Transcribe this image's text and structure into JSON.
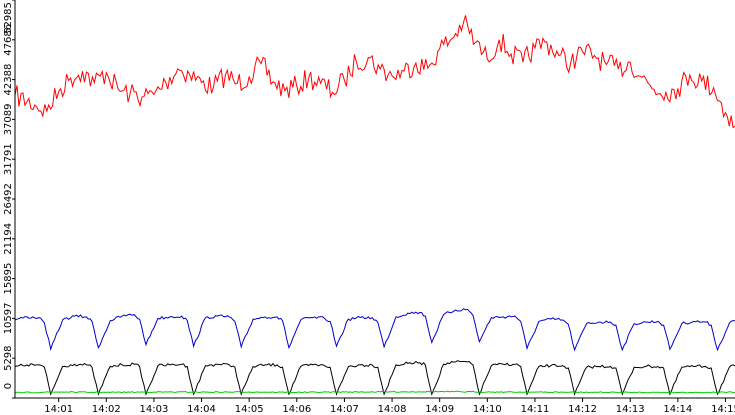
{
  "chart_data": {
    "type": "line",
    "title": "",
    "xlabel": "",
    "ylabel": "",
    "ylim": [
      0,
      52985
    ],
    "yticks": [
      0,
      5298,
      10597,
      15895,
      21194,
      26492,
      31791,
      37089,
      42388,
      47686,
      52985
    ],
    "ytick_labels": [
      "0",
      "5298",
      "10597",
      "15895",
      "21194",
      "26492",
      "31791",
      "37089",
      "42388",
      "47686",
      "52985"
    ],
    "xlim": [
      "14:00:05",
      "14:15:12"
    ],
    "xticks": [
      "14:01",
      "14:02",
      "14:03",
      "14:04",
      "14:05",
      "14:06",
      "14:07",
      "14:08",
      "14:09",
      "14:10",
      "14:11",
      "14:12",
      "14:13",
      "14:14",
      "14:15"
    ],
    "xtick_labels": [
      "14:01",
      "14:02",
      "14:03",
      "14:04",
      "14:05",
      "14:06",
      "14:07",
      "14:08",
      "14:09",
      "14:10",
      "14:11",
      "14:12",
      "14:13",
      "14:14",
      "14:15"
    ],
    "grid": false,
    "legend": "none",
    "series": [
      {
        "color": "#ff0000",
        "x": [
          "14:00:05",
          "14:00:30",
          "14:00:45",
          "14:01:00",
          "14:01:15",
          "14:01:30",
          "14:01:45",
          "14:02:00",
          "14:02:15",
          "14:02:30",
          "14:02:45",
          "14:03:00",
          "14:03:15",
          "14:03:30",
          "14:03:45",
          "14:04:00",
          "14:04:15",
          "14:04:30",
          "14:04:45",
          "14:05:00",
          "14:05:15",
          "14:05:30",
          "14:05:45",
          "14:06:00",
          "14:06:15",
          "14:06:30",
          "14:06:45",
          "14:07:00",
          "14:07:15",
          "14:07:30",
          "14:07:45",
          "14:08:00",
          "14:08:15",
          "14:08:30",
          "14:08:45",
          "14:09:00",
          "14:09:15",
          "14:09:30",
          "14:09:45",
          "14:10:00",
          "14:10:15",
          "14:10:30",
          "14:10:45",
          "14:11:00",
          "14:11:15",
          "14:11:30",
          "14:11:45",
          "14:12:00",
          "14:12:15",
          "14:12:30",
          "14:12:45",
          "14:13:00",
          "14:13:15",
          "14:13:30",
          "14:13:45",
          "14:14:00",
          "14:14:15",
          "14:14:30",
          "14:14:45",
          "14:15:00",
          "14:15:12"
        ],
        "values": [
          40300,
          39000,
          38200,
          40800,
          42600,
          43500,
          42000,
          43300,
          41100,
          40500,
          40100,
          40400,
          42000,
          43800,
          43100,
          42000,
          41400,
          43000,
          41900,
          42800,
          44500,
          42100,
          40900,
          41500,
          42600,
          41900,
          40700,
          42300,
          44800,
          45300,
          43800,
          42900,
          43500,
          44600,
          43900,
          46500,
          47800,
          50000,
          47300,
          45100,
          47700,
          45800,
          44700,
          46600,
          47400,
          45600,
          44600,
          46100,
          45600,
          44400,
          43800,
          44700,
          42700,
          41100,
          40700,
          41200,
          43000,
          42200,
          41300,
          38000,
          36200
        ]
      },
      {
        "color": "#0000cc",
        "x": [
          "14:00:05",
          "14:00:20",
          "14:00:35",
          "14:00:42",
          "14:00:50",
          "14:01:05",
          "14:01:20",
          "14:01:35",
          "14:01:42",
          "14:01:50",
          "14:02:05",
          "14:02:20",
          "14:02:35",
          "14:02:42",
          "14:02:50",
          "14:03:05",
          "14:03:20",
          "14:03:35",
          "14:03:42",
          "14:03:50",
          "14:04:05",
          "14:04:20",
          "14:04:35",
          "14:04:42",
          "14:04:50",
          "14:05:05",
          "14:05:20",
          "14:05:35",
          "14:05:42",
          "14:05:50",
          "14:06:05",
          "14:06:20",
          "14:06:35",
          "14:06:42",
          "14:06:50",
          "14:07:05",
          "14:07:20",
          "14:07:35",
          "14:07:42",
          "14:07:50",
          "14:08:05",
          "14:08:20",
          "14:08:35",
          "14:08:42",
          "14:08:50",
          "14:09:05",
          "14:09:20",
          "14:09:35",
          "14:09:42",
          "14:09:50",
          "14:10:05",
          "14:10:20",
          "14:10:35",
          "14:10:42",
          "14:10:50",
          "14:11:05",
          "14:11:20",
          "14:11:35",
          "14:11:42",
          "14:11:50",
          "14:12:05",
          "14:12:20",
          "14:12:35",
          "14:12:42",
          "14:12:50",
          "14:13:05",
          "14:13:20",
          "14:13:35",
          "14:13:42",
          "14:13:50",
          "14:14:05",
          "14:14:20",
          "14:14:35",
          "14:14:42",
          "14:14:50",
          "14:15:05",
          "14:15:12"
        ],
        "values": [
          10400,
          10800,
          10700,
          10000,
          6500,
          10400,
          10900,
          10800,
          10200,
          6700,
          10300,
          10900,
          11100,
          10500,
          7100,
          10600,
          10800,
          10900,
          10300,
          6900,
          10700,
          10900,
          10800,
          10200,
          6800,
          10500,
          10800,
          10800,
          10300,
          6700,
          10400,
          10700,
          10600,
          10200,
          6900,
          10500,
          10700,
          10700,
          10100,
          6800,
          10800,
          11300,
          11400,
          10900,
          7400,
          11100,
          11700,
          11800,
          11000,
          7500,
          10700,
          10800,
          10900,
          10200,
          6600,
          10200,
          10500,
          10400,
          9800,
          6400,
          9900,
          10100,
          10100,
          9700,
          6400,
          9900,
          10100,
          10200,
          9700,
          6500,
          9900,
          10200,
          10100,
          9700,
          6400,
          10000,
          10300
        ]
      },
      {
        "color": "#000000",
        "x": [
          "14:00:05",
          "14:00:20",
          "14:00:35",
          "14:00:42",
          "14:00:50",
          "14:01:05",
          "14:01:20",
          "14:01:35",
          "14:01:42",
          "14:01:50",
          "14:02:05",
          "14:02:20",
          "14:02:35",
          "14:02:42",
          "14:02:50",
          "14:03:05",
          "14:03:20",
          "14:03:35",
          "14:03:42",
          "14:03:50",
          "14:04:05",
          "14:04:20",
          "14:04:35",
          "14:04:42",
          "14:04:50",
          "14:05:05",
          "14:05:20",
          "14:05:35",
          "14:05:42",
          "14:05:50",
          "14:06:05",
          "14:06:20",
          "14:06:35",
          "14:06:42",
          "14:06:50",
          "14:07:05",
          "14:07:20",
          "14:07:35",
          "14:07:42",
          "14:07:50",
          "14:08:05",
          "14:08:20",
          "14:08:35",
          "14:08:42",
          "14:08:50",
          "14:09:05",
          "14:09:20",
          "14:09:35",
          "14:09:42",
          "14:09:50",
          "14:10:05",
          "14:10:20",
          "14:10:35",
          "14:10:42",
          "14:10:50",
          "14:11:05",
          "14:11:20",
          "14:11:35",
          "14:11:42",
          "14:11:50",
          "14:12:05",
          "14:12:20",
          "14:12:35",
          "14:12:42",
          "14:12:50",
          "14:13:05",
          "14:13:20",
          "14:13:35",
          "14:13:42",
          "14:13:50",
          "14:14:05",
          "14:14:20",
          "14:14:35",
          "14:14:42",
          "14:14:50",
          "14:15:05",
          "14:15:12"
        ],
        "values": [
          4200,
          4400,
          4400,
          4100,
          500,
          4200,
          4500,
          4400,
          4100,
          500,
          4200,
          4400,
          4500,
          4200,
          500,
          4300,
          4400,
          4500,
          4200,
          500,
          4300,
          4500,
          4400,
          4100,
          500,
          4200,
          4400,
          4400,
          4100,
          500,
          4200,
          4400,
          4300,
          4100,
          500,
          4200,
          4400,
          4400,
          4100,
          500,
          4400,
          4600,
          4700,
          4400,
          500,
          4500,
          4800,
          4800,
          4400,
          500,
          4300,
          4500,
          4500,
          4200,
          500,
          4200,
          4300,
          4300,
          4000,
          500,
          4100,
          4200,
          4200,
          4000,
          500,
          4100,
          4200,
          4200,
          4000,
          500,
          4100,
          4200,
          4200,
          4000,
          500,
          4100,
          4300
        ]
      },
      {
        "color": "#00cc00",
        "x": [
          "14:00:05",
          "14:01:00",
          "14:02:00",
          "14:03:00",
          "14:04:00",
          "14:05:00",
          "14:06:00",
          "14:07:00",
          "14:08:00",
          "14:09:00",
          "14:10:00",
          "14:11:00",
          "14:12:00",
          "14:13:00",
          "14:14:00",
          "14:15:12"
        ],
        "values": [
          700,
          800,
          750,
          800,
          780,
          800,
          750,
          800,
          820,
          850,
          800,
          780,
          760,
          750,
          740,
          760
        ]
      }
    ]
  }
}
